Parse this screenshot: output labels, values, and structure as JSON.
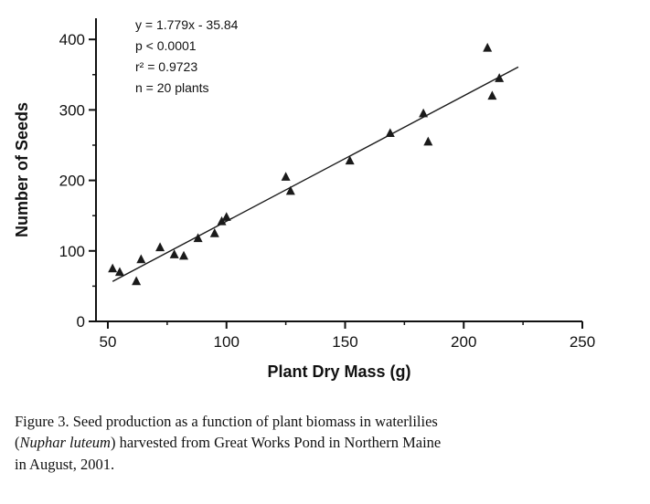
{
  "figure": {
    "caption": {
      "text_before_italic": "Figure 3. Seed production as a function of plant biomass in waterlilies (",
      "italic_species": "Nuphar luteum",
      "text_after_italic": ") harvested from Great Works Pond in Northern Maine in August, 2001."
    }
  },
  "chart_data": {
    "type": "scatter",
    "title": "",
    "xlabel": "Plant Dry Mass (g)",
    "ylabel": "Number of Seeds",
    "xlim": [
      45,
      250
    ],
    "ylim": [
      0,
      430
    ],
    "x_major_ticks": [
      50,
      100,
      150,
      200,
      250
    ],
    "x_minor_ticks": [
      75,
      125,
      175,
      225
    ],
    "y_major_ticks": [
      0,
      100,
      200,
      300,
      400
    ],
    "y_minor_ticks": [
      50,
      150,
      250,
      350
    ],
    "grid": false,
    "legend": false,
    "marker": "filled-triangle",
    "marker_color": "#1a1a1a",
    "line_color": "#1a1a1a",
    "points": [
      [
        52,
        75
      ],
      [
        55,
        70
      ],
      [
        62,
        57
      ],
      [
        64,
        88
      ],
      [
        72,
        105
      ],
      [
        78,
        95
      ],
      [
        82,
        93
      ],
      [
        88,
        118
      ],
      [
        95,
        125
      ],
      [
        98,
        142
      ],
      [
        100,
        148
      ],
      [
        125,
        205
      ],
      [
        127,
        185
      ],
      [
        152,
        228
      ],
      [
        169,
        267
      ],
      [
        183,
        295
      ],
      [
        185,
        255
      ],
      [
        210,
        388
      ],
      [
        212,
        320
      ],
      [
        215,
        345
      ]
    ],
    "regression": {
      "slope": 1.779,
      "intercept": -35.84,
      "x_start": 52,
      "x_end": 223
    },
    "stats": {
      "equation": "y = 1.779x - 35.84",
      "p_value": "p < 0.0001",
      "r_squared": 0.9723,
      "n_plants": 20
    },
    "annotation_lines": [
      "y = 1.779x - 35.84",
      "p < 0.0001",
      "r² = 0.9723",
      "n = 20 plants"
    ]
  }
}
